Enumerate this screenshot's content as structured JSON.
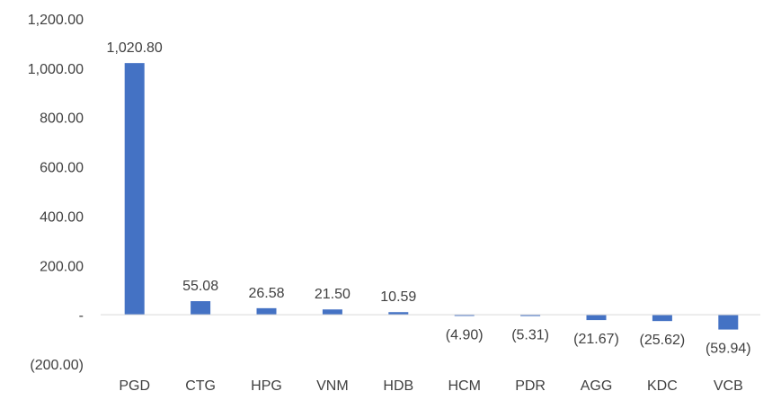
{
  "chart_data": {
    "type": "bar",
    "title": "",
    "xlabel": "",
    "ylabel": "",
    "categories": [
      "PGD",
      "CTG",
      "HPG",
      "VNM",
      "HDB",
      "HCM",
      "PDR",
      "AGG",
      "KDC",
      "VCB"
    ],
    "values": [
      1020.8,
      55.08,
      26.58,
      21.5,
      10.59,
      -4.9,
      -5.31,
      -21.67,
      -25.62,
      -59.94
    ],
    "data_labels": [
      "1,020.80",
      "55.08",
      "26.58",
      "21.50",
      "10.59",
      "(4.90)",
      "(5.31)",
      "(21.67)",
      "(25.62)",
      "(59.94)"
    ],
    "ylim": [
      -200,
      1200
    ],
    "yticks": [
      1200,
      1000,
      800,
      600,
      400,
      200,
      0,
      -200
    ],
    "ytick_labels": [
      "1,200.00",
      "1,000.00",
      "800.00",
      "600.00",
      "400.00",
      "200.00",
      "-",
      "(200.00)"
    ],
    "grid": false,
    "legend": "none",
    "bar_color": "#4472C4"
  }
}
